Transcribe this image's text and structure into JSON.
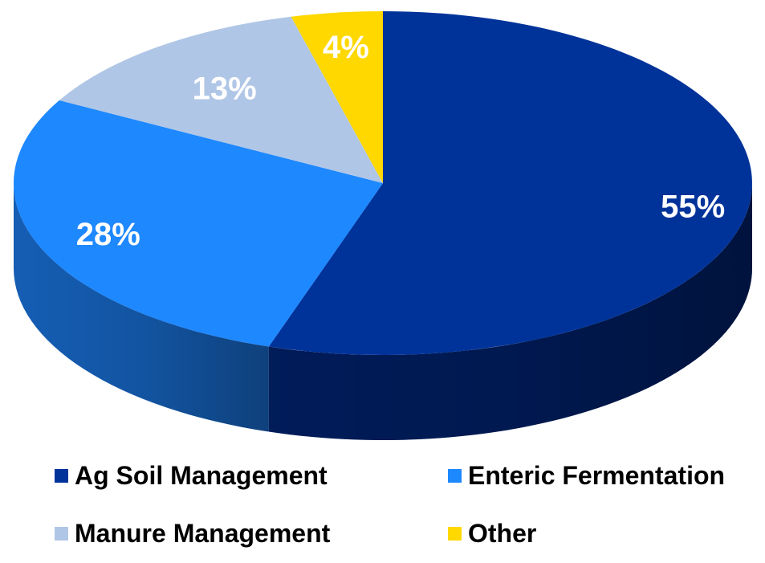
{
  "chart_data": {
    "type": "pie",
    "style": "3d",
    "title": "",
    "slices": [
      {
        "label": "Ag Soil Management",
        "value": 55,
        "display": "55%",
        "color": "#00339a",
        "side_color": "#001d5e"
      },
      {
        "label": "Enteric Fermentation",
        "value": 28,
        "display": "28%",
        "color": "#1e88ff",
        "side_color": "#1663be"
      },
      {
        "label": "Manure Management",
        "value": 13,
        "display": "13%",
        "color": "#b0c6e6",
        "side_color": "#8aa0c0"
      },
      {
        "label": "Other",
        "value": 4,
        "display": "4%",
        "color": "#ffd800",
        "side_color": "#c9aa00"
      }
    ],
    "legend_position": "bottom"
  }
}
